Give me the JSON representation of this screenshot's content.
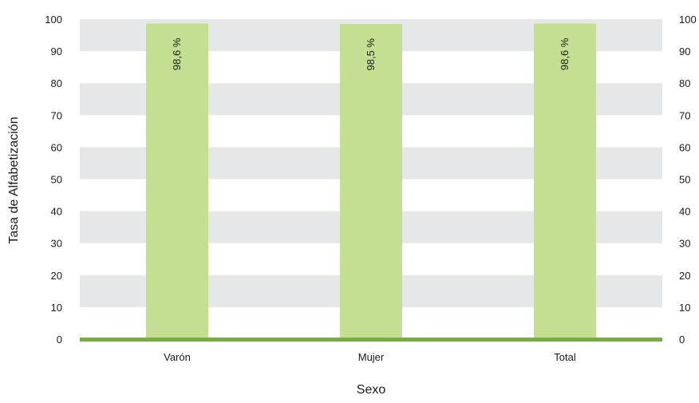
{
  "chart_data": {
    "type": "bar",
    "categories": [
      "Varón",
      "Mujer",
      "Total"
    ],
    "values": [
      98.6,
      98.5,
      98.6
    ],
    "data_labels": [
      "98,6 %",
      "98,5 %",
      "98,6 %"
    ],
    "xlabel": "Sexo",
    "ylabel": "Tasa de Alfabetización",
    "ylim": [
      0,
      100
    ],
    "yticks": [
      "0",
      "10",
      "20",
      "30",
      "40",
      "50",
      "60",
      "70",
      "80",
      "90",
      "100"
    ],
    "secondary_axis_ticks": [
      "0",
      "10",
      "20",
      "30",
      "40",
      "50",
      "60",
      "70",
      "80",
      "90",
      "100"
    ],
    "grid": "alternating horizontal bands",
    "colors": {
      "bar": "#c5df92",
      "band": "#e6e7e8",
      "baseline": "#77ab44"
    }
  }
}
